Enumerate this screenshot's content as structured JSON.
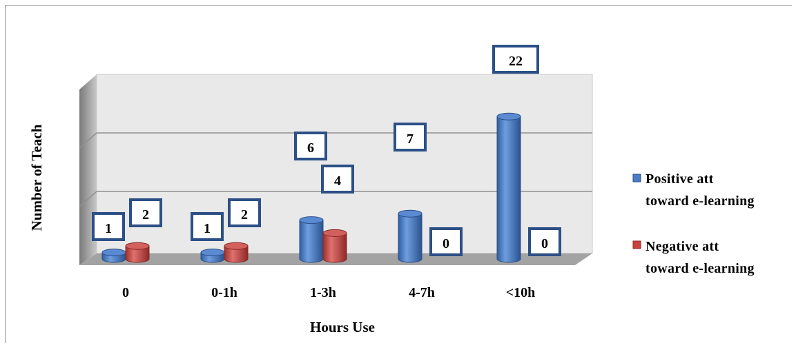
{
  "chart_data": {
    "type": "bar",
    "title": "",
    "xlabel": "Hours Use",
    "ylabel": "Number of Teach",
    "categories": [
      "0",
      "0-1h",
      "1-3h",
      "4-7h",
      "<10h"
    ],
    "series": [
      {
        "name": "Positive att toward e-learning",
        "name_lines": [
          "Positive att",
          "toward e-learning"
        ],
        "values": [
          1,
          1,
          6,
          7,
          22
        ],
        "color": "#4a7cc4"
      },
      {
        "name": "Negative att toward e-learning",
        "name_lines": [
          "Negative att",
          "toward e-learning"
        ],
        "values": [
          2,
          2,
          4,
          0,
          0
        ],
        "color": "#c9423f"
      }
    ],
    "grid": true,
    "legend_position": "right",
    "style": "3d-cylinder",
    "label_box_color": "#2c4f86",
    "wall_color": "#e8e8e8",
    "floor_color": "#a0a0a0"
  }
}
